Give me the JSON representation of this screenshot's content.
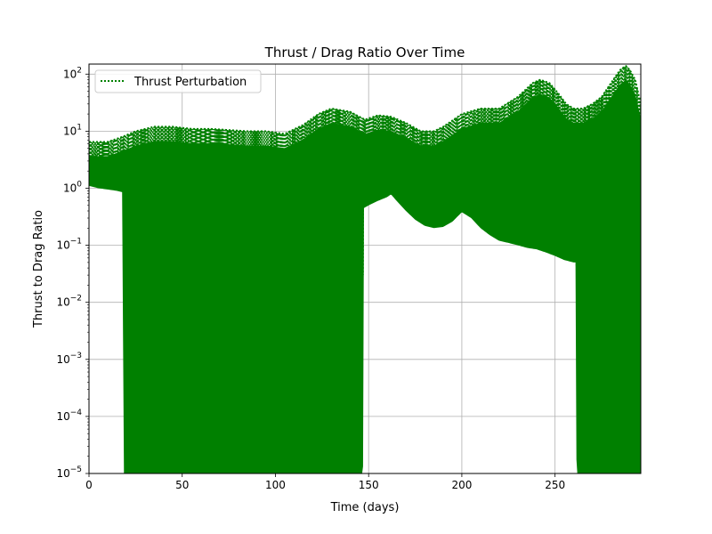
{
  "chart_data": {
    "type": "line",
    "title": "Thrust / Drag Ratio Over Time",
    "xlabel": "Time (days)",
    "ylabel": "Thrust to Drag Ratio",
    "x_scale": "linear",
    "y_scale": "log",
    "xlim": [
      0,
      296
    ],
    "ylim": [
      1e-05,
      150
    ],
    "x_ticks": [
      0,
      50,
      100,
      150,
      200,
      250
    ],
    "x_tick_labels": [
      "0",
      "50",
      "100",
      "150",
      "200",
      "250"
    ],
    "y_ticks": [
      1e-05,
      0.0001,
      0.001,
      0.01,
      0.1,
      1,
      10,
      100
    ],
    "y_tick_labels": [
      {
        "base": "10",
        "exp": "−5"
      },
      {
        "base": "10",
        "exp": "−4"
      },
      {
        "base": "10",
        "exp": "−3"
      },
      {
        "base": "10",
        "exp": "−2"
      },
      {
        "base": "10",
        "exp": "−1"
      },
      {
        "base": "10",
        "exp": "0"
      },
      {
        "base": "10",
        "exp": "1"
      },
      {
        "base": "10",
        "exp": "2"
      }
    ],
    "grid": true,
    "legend": {
      "position": "upper-left",
      "entries": [
        {
          "label": "Thrust Perturbation",
          "color": "#008000",
          "style": "dotted"
        }
      ]
    },
    "series": [
      {
        "name": "Thrust Perturbation",
        "color": "#008000",
        "line_style": "dotted",
        "envelope_upper": {
          "x": [
            0,
            10,
            18,
            25,
            35,
            45,
            55,
            65,
            75,
            85,
            95,
            105,
            115,
            123,
            130,
            140,
            148,
            155,
            162,
            170,
            178,
            185,
            190,
            200,
            210,
            220,
            230,
            238,
            242,
            247,
            252,
            256,
            260,
            265,
            270,
            275,
            280,
            285,
            288,
            290,
            293,
            296
          ],
          "y": [
            6.5,
            6.5,
            8.0,
            10.0,
            12.0,
            12.0,
            11.0,
            11.0,
            10.5,
            10.0,
            10.0,
            9.0,
            13.0,
            20.0,
            25.0,
            22.0,
            16.0,
            19.0,
            18.0,
            14.0,
            10.0,
            10.0,
            12.0,
            20.0,
            25.0,
            25.0,
            40.0,
            70.0,
            80.0,
            70.0,
            45.0,
            30.0,
            25.0,
            25.0,
            30.0,
            40.0,
            70.0,
            120.0,
            140.0,
            120.0,
            80.0,
            30.0
          ]
        },
        "envelope_lower": {
          "x": [
            0,
            5,
            10,
            15,
            18,
            18.5,
            147,
            147.5,
            150,
            155,
            160,
            162,
            165,
            170,
            175,
            180,
            185,
            190,
            195,
            200,
            205,
            210,
            215,
            220,
            225,
            230,
            235,
            240,
            245,
            250,
            255,
            260,
            261,
            261.5,
            296
          ],
          "y": [
            1.1,
            1.0,
            0.95,
            0.9,
            0.85,
            1e-05,
            1e-05,
            0.45,
            0.5,
            0.6,
            0.7,
            0.78,
            0.6,
            0.4,
            0.28,
            0.22,
            0.2,
            0.21,
            0.26,
            0.38,
            0.3,
            0.2,
            0.15,
            0.12,
            0.11,
            0.1,
            0.09,
            0.085,
            0.075,
            0.065,
            0.055,
            0.05,
            0.05,
            1e-05,
            1e-05
          ]
        }
      }
    ]
  }
}
